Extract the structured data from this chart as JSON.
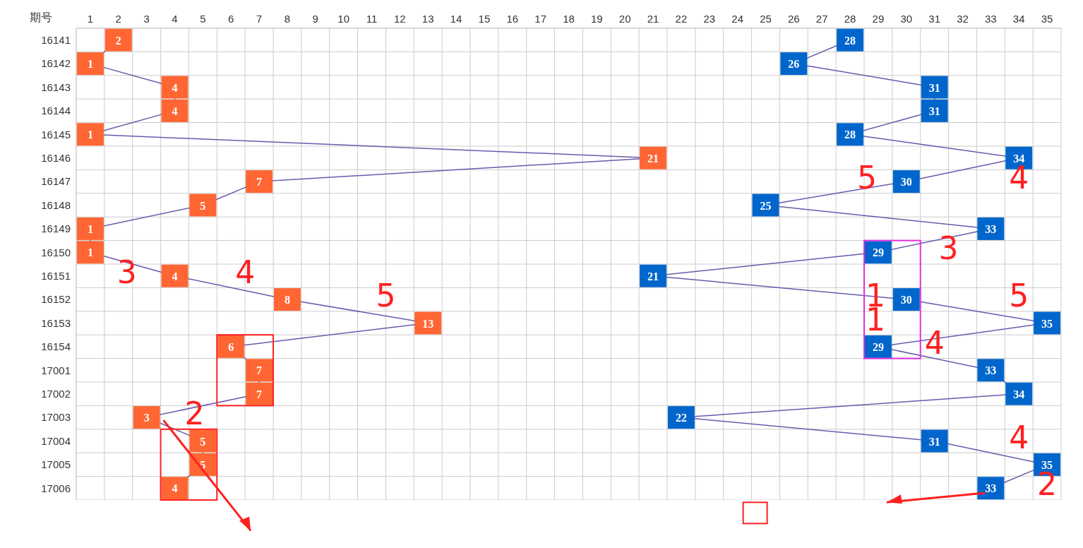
{
  "chart_data": {
    "type": "line",
    "ylabel": "期号",
    "categories": [
      "16141",
      "16142",
      "16143",
      "16144",
      "16145",
      "16146",
      "16147",
      "16148",
      "16149",
      "16150",
      "16151",
      "16152",
      "16153",
      "16154",
      "17001",
      "17002",
      "17003",
      "17004",
      "17005",
      "17006"
    ],
    "series": [
      {
        "color": "#ff6633",
        "values": [
          2,
          1,
          4,
          4,
          1,
          21,
          7,
          5,
          1,
          1,
          4,
          8,
          13,
          6,
          7,
          7,
          3,
          5,
          5,
          4
        ]
      },
      {
        "color": "#0066cc",
        "values": [
          28,
          26,
          31,
          31,
          28,
          34,
          30,
          25,
          33,
          29,
          21,
          30,
          35,
          29,
          33,
          34,
          22,
          31,
          35,
          33
        ]
      }
    ],
    "xlim": [
      0.5,
      35.5
    ],
    "xticks": [
      1,
      2,
      3,
      4,
      5,
      6,
      7,
      8,
      9,
      10,
      11,
      12,
      13,
      14,
      15,
      16,
      17,
      18,
      19,
      20,
      21,
      22,
      23,
      24,
      25,
      26,
      27,
      28,
      29,
      30,
      31,
      32,
      33,
      34,
      35
    ],
    "orientation": "horizontal",
    "grid": true,
    "marker": "square",
    "line_style": "solid",
    "data_labels": true,
    "annotations": [
      "5",
      "4",
      "3",
      "3",
      "4",
      "5",
      "1",
      "1",
      "5",
      "4",
      "2",
      "4",
      "2"
    ]
  }
}
